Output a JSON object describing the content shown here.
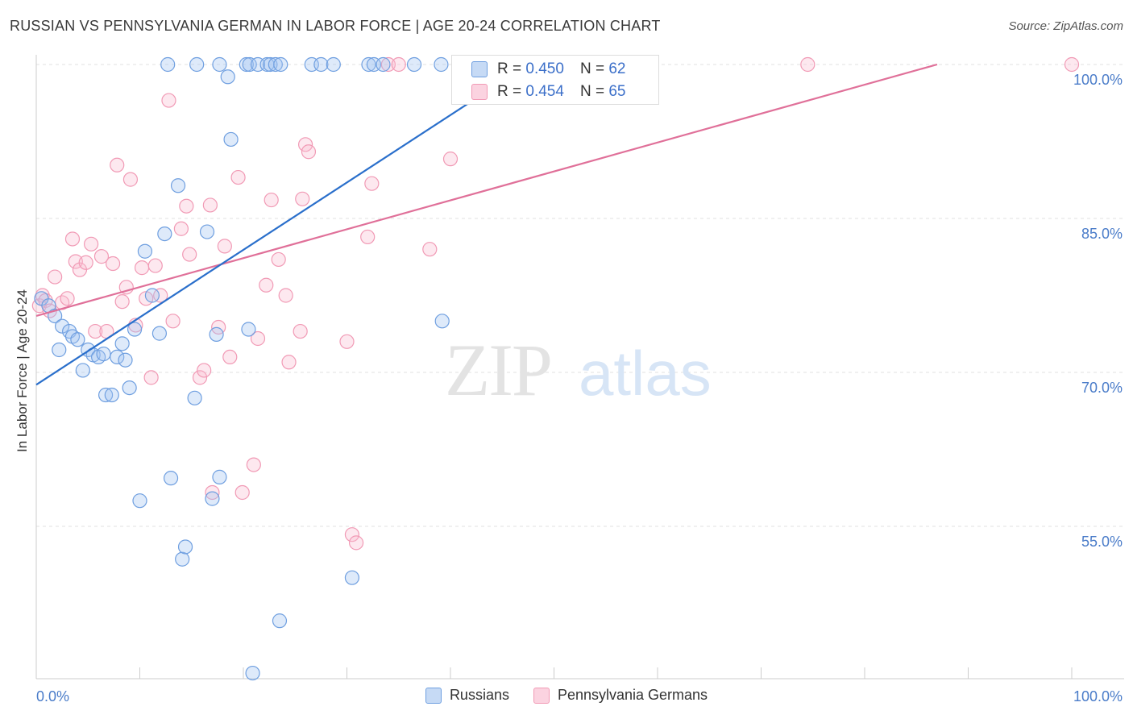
{
  "title": "RUSSIAN VS PENNSYLVANIA GERMAN IN LABOR FORCE | AGE 20-24 CORRELATION CHART",
  "source": "Source: ZipAtlas.com",
  "watermark_zip": "ZIP",
  "watermark_atlas": "atlas",
  "colors": {
    "blue": "#6f9fe0",
    "blue_line": "#2a6fcb",
    "pink": "#f19ab5",
    "pink_line": "#e07099",
    "axis_text": "#4a7cc9"
  },
  "chart_data": {
    "type": "scatter",
    "title": "RUSSIAN VS PENNSYLVANIA GERMAN IN LABOR FORCE | AGE 20-24 CORRELATION CHART",
    "xlabel": "",
    "ylabel": "In Labor Force | Age 20-24",
    "xlim": [
      0,
      100
    ],
    "ylim": [
      40,
      101
    ],
    "x_tick_labels": [
      "0.0%",
      "100.0%"
    ],
    "y_ticks": [
      55,
      70,
      85,
      100
    ],
    "y_tick_labels": [
      "55.0%",
      "70.0%",
      "85.0%",
      "100.0%"
    ],
    "grid": true,
    "legend_placement": "bottom",
    "stats": [
      {
        "r_label": "R =",
        "r_value": "0.450",
        "n_label": "N =",
        "n_value": "62"
      },
      {
        "r_label": "R =",
        "r_value": "0.454",
        "n_label": "N =",
        "n_value": "65"
      }
    ],
    "series": [
      {
        "name": "Russians",
        "trend": [
          [
            0,
            68.8
          ],
          [
            47.5,
            100
          ]
        ],
        "points": [
          [
            0.5,
            77.2
          ],
          [
            1.2,
            76.5
          ],
          [
            1.8,
            75.5
          ],
          [
            2.2,
            72.2
          ],
          [
            2.5,
            74.5
          ],
          [
            3.2,
            74.0
          ],
          [
            3.5,
            73.5
          ],
          [
            4.0,
            73.2
          ],
          [
            4.5,
            70.2
          ],
          [
            5.0,
            72.2
          ],
          [
            5.5,
            71.7
          ],
          [
            6.0,
            71.5
          ],
          [
            6.5,
            71.8
          ],
          [
            6.7,
            67.8
          ],
          [
            7.3,
            67.8
          ],
          [
            7.8,
            71.5
          ],
          [
            8.3,
            72.8
          ],
          [
            8.6,
            71.2
          ],
          [
            9.0,
            68.5
          ],
          [
            9.5,
            74.2
          ],
          [
            10.0,
            57.5
          ],
          [
            10.5,
            81.8
          ],
          [
            11.2,
            77.5
          ],
          [
            11.9,
            73.8
          ],
          [
            12.4,
            83.5
          ],
          [
            13.0,
            59.7
          ],
          [
            13.7,
            88.2
          ],
          [
            14.1,
            51.8
          ],
          [
            14.4,
            53.0
          ],
          [
            15.3,
            67.5
          ],
          [
            16.5,
            83.7
          ],
          [
            17.0,
            57.7
          ],
          [
            17.4,
            73.7
          ],
          [
            17.7,
            59.8
          ],
          [
            18.8,
            92.7
          ],
          [
            20.5,
            74.2
          ],
          [
            20.9,
            40.7
          ],
          [
            23.5,
            45.8
          ],
          [
            30.5,
            50.0
          ],
          [
            39.2,
            75.0
          ],
          [
            12.7,
            100
          ],
          [
            15.5,
            100
          ],
          [
            17.7,
            100
          ],
          [
            18.5,
            98.8
          ],
          [
            20.3,
            100
          ],
          [
            20.6,
            100
          ],
          [
            21.4,
            100
          ],
          [
            22.3,
            100
          ],
          [
            22.6,
            100
          ],
          [
            23.1,
            100
          ],
          [
            23.6,
            100
          ],
          [
            26.6,
            100
          ],
          [
            27.5,
            100
          ],
          [
            28.7,
            100
          ],
          [
            32.1,
            100
          ],
          [
            32.6,
            100
          ],
          [
            33.5,
            100
          ],
          [
            36.5,
            100
          ],
          [
            39.1,
            100
          ],
          [
            43.5,
            100
          ],
          [
            46.0,
            100
          ],
          [
            47.2,
            100
          ]
        ]
      },
      {
        "name": "Pennsylvania Germans",
        "trend": [
          [
            0,
            75.5
          ],
          [
            87,
            100
          ]
        ],
        "points": [
          [
            0.3,
            76.5
          ],
          [
            0.6,
            77.5
          ],
          [
            0.9,
            77.0
          ],
          [
            1.3,
            76.0
          ],
          [
            1.8,
            79.3
          ],
          [
            2.5,
            76.8
          ],
          [
            3.0,
            77.2
          ],
          [
            3.5,
            83.0
          ],
          [
            3.8,
            80.8
          ],
          [
            4.2,
            80.0
          ],
          [
            4.8,
            80.7
          ],
          [
            5.3,
            82.5
          ],
          [
            5.7,
            74.0
          ],
          [
            6.3,
            81.3
          ],
          [
            6.8,
            74.0
          ],
          [
            7.4,
            80.6
          ],
          [
            7.8,
            90.2
          ],
          [
            8.3,
            76.9
          ],
          [
            8.7,
            78.3
          ],
          [
            9.1,
            88.8
          ],
          [
            9.6,
            74.6
          ],
          [
            10.2,
            80.2
          ],
          [
            10.6,
            77.2
          ],
          [
            11.1,
            69.5
          ],
          [
            11.5,
            80.4
          ],
          [
            12.0,
            77.5
          ],
          [
            12.8,
            96.5
          ],
          [
            13.2,
            75.0
          ],
          [
            14.0,
            84.0
          ],
          [
            14.5,
            86.2
          ],
          [
            14.8,
            81.5
          ],
          [
            15.8,
            69.5
          ],
          [
            16.2,
            70.2
          ],
          [
            16.8,
            86.3
          ],
          [
            17.0,
            58.3
          ],
          [
            17.6,
            74.4
          ],
          [
            18.2,
            82.3
          ],
          [
            18.7,
            71.5
          ],
          [
            19.5,
            89.0
          ],
          [
            19.9,
            58.3
          ],
          [
            21.4,
            73.3
          ],
          [
            21.0,
            61.0
          ],
          [
            22.2,
            78.5
          ],
          [
            22.7,
            86.8
          ],
          [
            23.4,
            81.0
          ],
          [
            24.1,
            77.5
          ],
          [
            24.4,
            71.0
          ],
          [
            25.5,
            74.0
          ],
          [
            25.7,
            86.9
          ],
          [
            26.0,
            92.2
          ],
          [
            26.3,
            91.5
          ],
          [
            30.0,
            73.0
          ],
          [
            30.5,
            54.2
          ],
          [
            30.9,
            53.4
          ],
          [
            32.0,
            83.2
          ],
          [
            32.4,
            88.4
          ],
          [
            34.0,
            100
          ],
          [
            35.0,
            100
          ],
          [
            38.0,
            82.0
          ],
          [
            40.0,
            90.8
          ],
          [
            44.0,
            100
          ],
          [
            46.5,
            100
          ],
          [
            58.5,
            100
          ],
          [
            74.5,
            100
          ],
          [
            100,
            100
          ]
        ]
      }
    ]
  }
}
